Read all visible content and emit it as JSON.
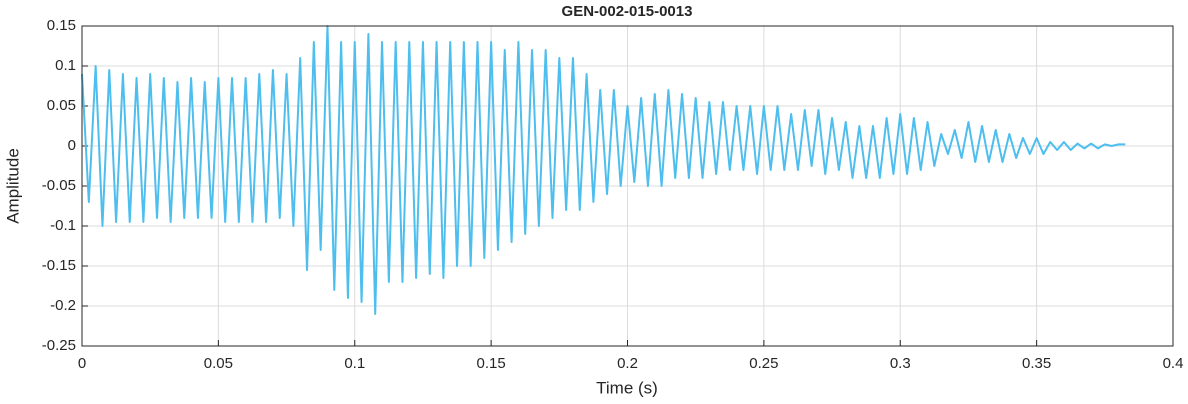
{
  "chart_data": {
    "type": "line",
    "title": "GEN-002-015-0013",
    "xlabel": "Time (s)",
    "ylabel": "Amplitude",
    "x": [
      0,
      0.0025,
      0.005,
      0.0075,
      0.01,
      0.0125,
      0.015,
      0.0175,
      0.02,
      0.0225,
      0.025,
      0.0275,
      0.03,
      0.0325,
      0.035,
      0.0375,
      0.04,
      0.0425,
      0.045,
      0.0475,
      0.05,
      0.0525,
      0.055,
      0.0575,
      0.06,
      0.0625,
      0.065,
      0.0675,
      0.07,
      0.0725,
      0.075,
      0.0775,
      0.08,
      0.0825,
      0.085,
      0.0875,
      0.09,
      0.0925,
      0.095,
      0.0975,
      0.1,
      0.1025,
      0.105,
      0.1075,
      0.11,
      0.1125,
      0.115,
      0.1175,
      0.12,
      0.1225,
      0.125,
      0.1275,
      0.13,
      0.1325,
      0.135,
      0.1375,
      0.14,
      0.1425,
      0.145,
      0.1475,
      0.15,
      0.1525,
      0.155,
      0.1575,
      0.16,
      0.1625,
      0.165,
      0.1675,
      0.17,
      0.1725,
      0.175,
      0.1775,
      0.18,
      0.1825,
      0.185,
      0.1875,
      0.19,
      0.1925,
      0.195,
      0.1975,
      0.2,
      0.2025,
      0.205,
      0.2075,
      0.21,
      0.2125,
      0.215,
      0.2175,
      0.22,
      0.2225,
      0.225,
      0.2275,
      0.23,
      0.2325,
      0.235,
      0.2375,
      0.24,
      0.2425,
      0.245,
      0.2475,
      0.25,
      0.2525,
      0.255,
      0.2575,
      0.26,
      0.2625,
      0.265,
      0.2675,
      0.27,
      0.2725,
      0.275,
      0.2775,
      0.28,
      0.2825,
      0.285,
      0.2875,
      0.29,
      0.2925,
      0.295,
      0.2975,
      0.3,
      0.3025,
      0.305,
      0.3075,
      0.31,
      0.3125,
      0.315,
      0.3175,
      0.32,
      0.3225,
      0.325,
      0.3275,
      0.33,
      0.3325,
      0.335,
      0.3375,
      0.34,
      0.3425,
      0.345,
      0.3475,
      0.35,
      0.3525,
      0.355,
      0.3575,
      0.36,
      0.3625,
      0.365,
      0.3675,
      0.37,
      0.3725,
      0.375,
      0.3775,
      0.38,
      0.3825
    ],
    "series": [
      {
        "color": "#4dbeee",
        "values": [
          0.09,
          -0.07,
          0.1,
          -0.1,
          0.095,
          -0.095,
          0.09,
          -0.095,
          0.085,
          -0.095,
          0.09,
          -0.09,
          0.085,
          -0.095,
          0.08,
          -0.09,
          0.085,
          -0.09,
          0.08,
          -0.09,
          0.085,
          -0.095,
          0.085,
          -0.095,
          0.085,
          -0.095,
          0.09,
          -0.095,
          0.095,
          -0.09,
          0.09,
          -0.1,
          0.11,
          -0.155,
          0.13,
          -0.13,
          0.15,
          -0.18,
          0.13,
          -0.19,
          0.13,
          -0.195,
          0.14,
          -0.21,
          0.13,
          -0.17,
          0.13,
          -0.17,
          0.13,
          -0.165,
          0.13,
          -0.16,
          0.13,
          -0.165,
          0.13,
          -0.15,
          0.13,
          -0.15,
          0.13,
          -0.14,
          0.13,
          -0.13,
          0.12,
          -0.12,
          0.13,
          -0.11,
          0.12,
          -0.1,
          0.12,
          -0.09,
          0.11,
          -0.08,
          0.11,
          -0.08,
          0.09,
          -0.07,
          0.07,
          -0.06,
          0.07,
          -0.05,
          0.05,
          -0.045,
          0.06,
          -0.05,
          0.065,
          -0.05,
          0.07,
          -0.04,
          0.065,
          -0.04,
          0.06,
          -0.04,
          0.055,
          -0.035,
          0.055,
          -0.03,
          0.05,
          -0.03,
          0.05,
          -0.035,
          0.05,
          -0.03,
          0.05,
          -0.03,
          0.04,
          -0.03,
          0.045,
          -0.025,
          0.045,
          -0.035,
          0.035,
          -0.03,
          0.03,
          -0.04,
          0.025,
          -0.04,
          0.025,
          -0.04,
          0.035,
          -0.035,
          0.04,
          -0.035,
          0.035,
          -0.03,
          0.03,
          -0.025,
          0.015,
          -0.01,
          0.02,
          -0.015,
          0.03,
          -0.02,
          0.025,
          -0.02,
          0.02,
          -0.02,
          0.015,
          -0.015,
          0.01,
          -0.01,
          0.01,
          -0.01,
          0.005,
          -0.005,
          0.005,
          -0.005,
          0.003,
          -0.003,
          0.003,
          -0.003,
          0.002,
          0,
          0.002,
          0.002
        ]
      }
    ],
    "xlim": [
      0,
      0.4
    ],
    "xticks": [
      0,
      0.05,
      0.1,
      0.15,
      0.2,
      0.25,
      0.3,
      0.35,
      0.4
    ],
    "ylim": [
      -0.25,
      0.15
    ],
    "yticks": [
      -0.25,
      -0.2,
      -0.15,
      -0.1,
      -0.05,
      0,
      0.05,
      0.1,
      0.15
    ],
    "grid": true
  }
}
